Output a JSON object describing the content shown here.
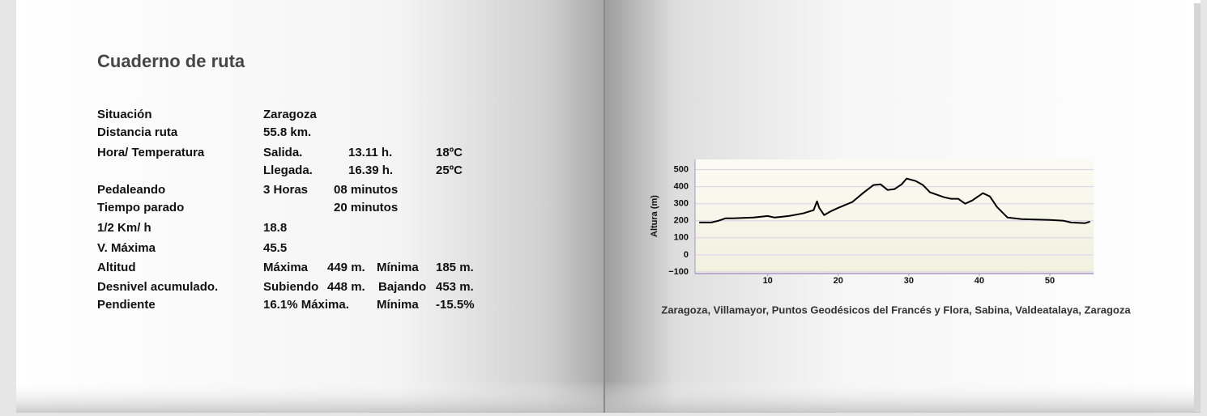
{
  "page": {
    "title": "Cuaderno de ruta",
    "rows": [
      {
        "label": "Situación",
        "cells": [
          "Zaragoza"
        ]
      },
      {
        "label": "Distancia ruta",
        "cells": [
          "55.8 km."
        ]
      },
      {
        "label": "Hora/ Temperatura",
        "cells": [
          "Salida.",
          "13.11 h.",
          "18ºC"
        ]
      },
      {
        "cells": [
          "Llegada.",
          "16.39 h.",
          "25ºC"
        ]
      },
      {
        "label": "Pedaleando",
        "cells": [
          "3 Horas",
          "08 minutos"
        ]
      },
      {
        "label": "Tiempo parado",
        "cells": [
          "20 minutos"
        ]
      },
      {
        "label": "1/2 Km/ h",
        "cells": [
          "18.8"
        ]
      },
      {
        "label": "V. Máxima",
        "cells": [
          "45.5"
        ]
      },
      {
        "label": "Altitud",
        "cells": [
          "Máxima",
          "449 m.",
          "Mínima",
          "185 m."
        ]
      },
      {
        "label": "Desnivel acumulado.",
        "cells": [
          "Subiendo",
          "448 m.",
          "Bajando",
          "453 m."
        ]
      },
      {
        "label": "Pendiente",
        "cells": [
          "16.1% Máxima.",
          "Mínima",
          "-15.5%"
        ]
      }
    ],
    "caption": "Zaragoza, Villamayor, Puntos Geodésicos del Francés y Flora, Sabina, Valdeatalaya, Zaragoza"
  },
  "chart_data": {
    "type": "line",
    "y_label": "Altura (m)",
    "x": [
      0.3,
      2,
      3,
      4,
      5,
      8,
      10,
      11,
      13,
      15,
      16.5,
      17,
      17.3,
      18,
      19,
      20,
      22,
      23.5,
      25,
      26,
      27,
      28,
      29,
      29.7,
      31,
      32,
      33,
      35,
      36,
      37,
      38,
      39,
      40.5,
      41.5,
      42.5,
      44,
      46,
      50,
      52,
      53,
      55,
      55.7
    ],
    "series": [
      {
        "color": "#000000",
        "values": [
          190,
          190,
          200,
          214,
          214,
          219,
          228,
          219,
          228,
          243,
          262,
          314,
          276,
          233,
          257,
          276,
          310,
          362,
          410,
          414,
          381,
          386,
          414,
          448,
          433,
          410,
          367,
          338,
          329,
          329,
          300,
          319,
          362,
          343,
          281,
          219,
          210,
          205,
          200,
          190,
          186,
          195
        ]
      }
    ],
    "xlim": [
      -0.3,
      56.2
    ],
    "ylim": [
      -110,
      560
    ],
    "xticks": [
      10,
      20,
      30,
      40,
      50
    ],
    "yticks": [
      500,
      400,
      300,
      200,
      100,
      0,
      {
        "value": -100,
        "label": "−100"
      }
    ],
    "grid": true
  }
}
